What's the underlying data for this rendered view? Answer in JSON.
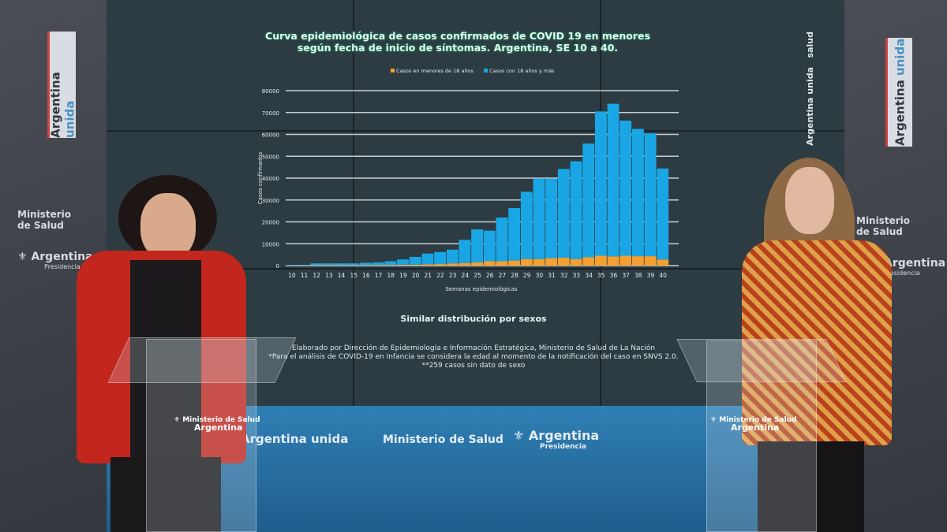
{
  "screen": {
    "salud": "salud",
    "argentina_unida": "Argentina unida",
    "subtitle": "Similar distribución por sexos",
    "notes": [
      "Elaborado por Dirección de Epidemiología e Información Estratégica, Ministerio de Salud de La Nación",
      "*Para el análisis de COVID-19 en  Infancia se considera la edad al momento de la notificación del caso en SNVS 2.0.",
      "**259 casos sin dato de sexo"
    ]
  },
  "set": {
    "banner_word1": "Argentina",
    "banner_word2": "unida",
    "ministerio": "Ministerio de Salud",
    "argentina": "Argentina",
    "presidencia": "Presidencia",
    "podium_line1": "Ministerio de Salud",
    "podium_line2": "Argentina"
  },
  "chart_data": {
    "type": "bar",
    "stacked": true,
    "title": "Curva epidemiológica de casos confirmados de COVID 19 en menores según fecha de inicio de síntomas. Argentina, SE 10 a 40.",
    "xlabel": "Semanas epidemiológicas",
    "ylabel": "Casos confirmados",
    "ylim": [
      0,
      80000
    ],
    "yticks": [
      0,
      10000,
      20000,
      30000,
      40000,
      50000,
      60000,
      70000,
      80000
    ],
    "grid": true,
    "legend": "top-center",
    "categories": [
      "10",
      "11",
      "12",
      "13",
      "14",
      "15",
      "16",
      "17",
      "18",
      "19",
      "20",
      "21",
      "22",
      "23",
      "24",
      "25",
      "26",
      "27",
      "28",
      "29",
      "30",
      "31",
      "32",
      "33",
      "34",
      "35",
      "36",
      "37",
      "38",
      "39",
      "40"
    ],
    "series": [
      {
        "name": "Casos en menores de 18 años",
        "color": "#f5a030",
        "values": [
          50,
          80,
          150,
          150,
          150,
          150,
          200,
          250,
          300,
          400,
          400,
          600,
          700,
          1000,
          1200,
          1500,
          2000,
          2000,
          2300,
          3000,
          3000,
          3400,
          3600,
          3000,
          3800,
          4500,
          4200,
          4500,
          4300,
          4300,
          2800
        ]
      },
      {
        "name": "Casos con 18 años y más",
        "color": "#1aa6e4",
        "values": [
          150,
          220,
          850,
          850,
          850,
          850,
          1100,
          1250,
          1700,
          2400,
          3600,
          4900,
          5500,
          6300,
          10600,
          15100,
          14000,
          20000,
          24000,
          30800,
          36800,
          36400,
          40600,
          44700,
          52000,
          66000,
          69800,
          61800,
          58200,
          56200,
          41600
        ]
      }
    ]
  }
}
